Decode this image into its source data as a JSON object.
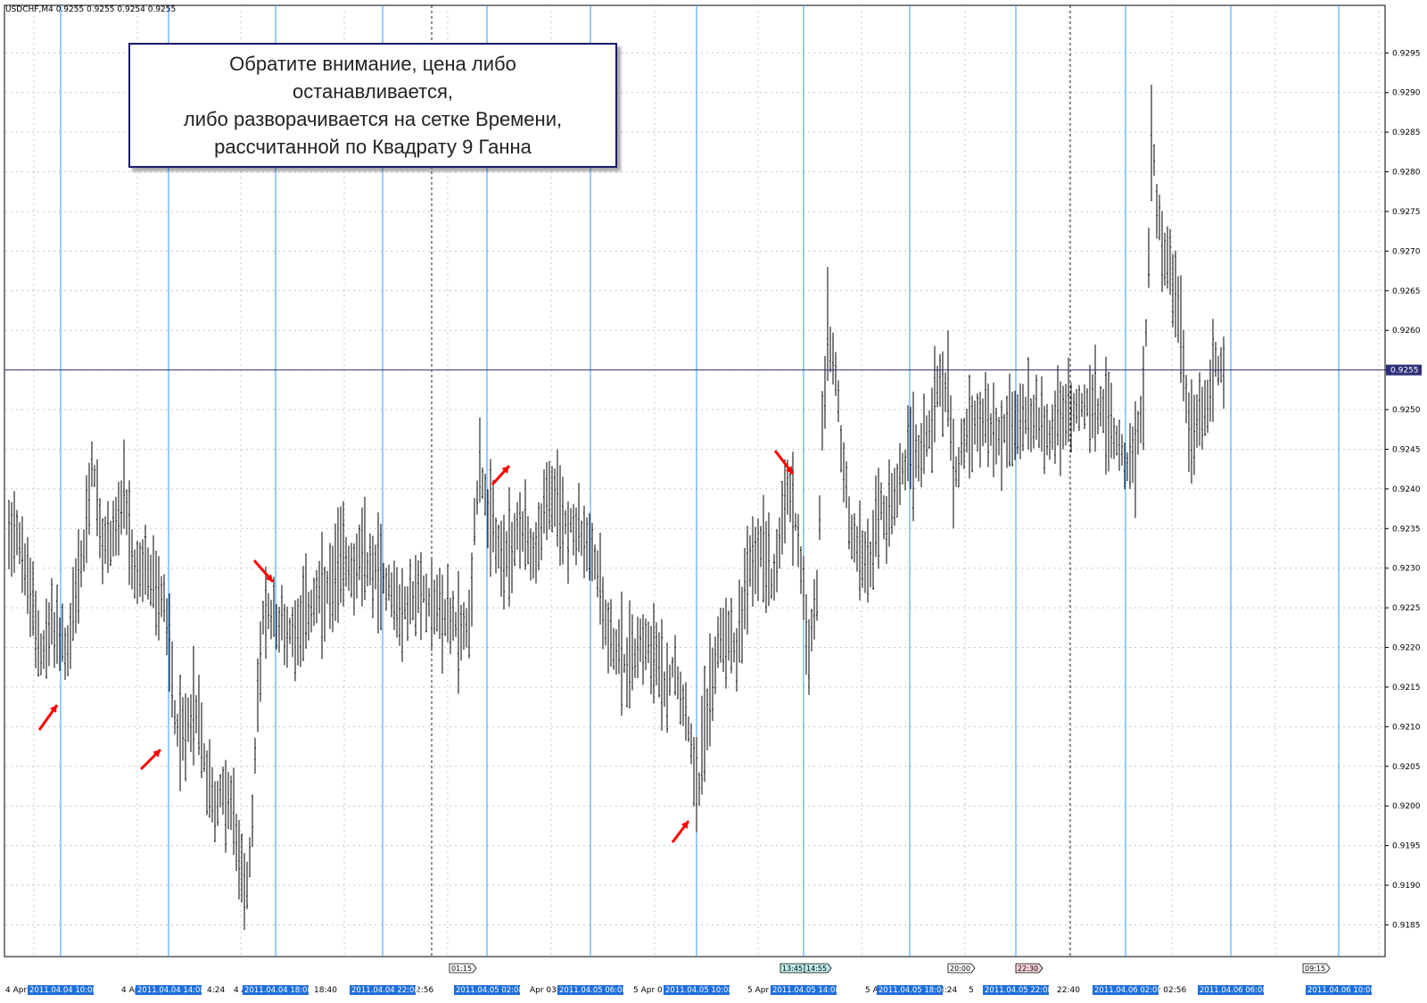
{
  "header": {
    "symbol_label": "USDCHF,M4",
    "ohlc_label": "0.9255 0.9255 0.9254 0.9255"
  },
  "annotation": {
    "text": "Обратите внимание, цена либо останавливается,\nлибо разворачивается на сетке Времени,\nрассчитанной по Квадрату 9 Ганна"
  },
  "colors": {
    "bars": "#000000",
    "time_grid": "#3399ff",
    "price_line": "#33337a",
    "arrows": "#ff0000",
    "label_bg": "#1e6fdc",
    "grid": "#c8c8c8"
  },
  "chart_data": {
    "type": "ohlc_bar",
    "symbol": "USDCHF",
    "timeframe": "M4",
    "ylim": [
      0.9181,
      0.9301
    ],
    "y_ticks": [
      "0.9185",
      "0.9190",
      "0.9195",
      "0.9200",
      "0.9205",
      "0.9210",
      "0.9215",
      "0.9220",
      "0.9225",
      "0.9230",
      "0.9235",
      "0.9240",
      "0.9245",
      "0.9250",
      "0.9255",
      "0.9260",
      "0.9265",
      "0.9270",
      "0.9275",
      "0.9280",
      "0.9285",
      "0.9290",
      "0.9295"
    ],
    "current_price": "0.9255",
    "time_lines": [
      "2011.04.04 10:08",
      "2011.04.04 14:08",
      "2011.04.04 18:08",
      "2011.04.04 22:08",
      "2011.04.05 02:08",
      "2011.04.05 06:08",
      "2011.04.05 10:08",
      "2011.04.05 14:08",
      "2011.04.05 18:04",
      "2011.04.05 22:08",
      "2011.04.06 02:08",
      "2011.04.06 06:08",
      "2011.04.06 10:08"
    ],
    "axis_fragments": [
      "4 Apr",
      "4 Ap",
      "4:24",
      "4 A",
      "18:40",
      "pr 22:56",
      "Apr 03:2",
      "5 Apr 0",
      "5 Apr",
      "5 A",
      "8:24",
      "5",
      "22:40",
      "pr 02:56"
    ],
    "tag_labels": [
      {
        "text": "01:15",
        "color": "#ffffff"
      },
      {
        "text": "13:45",
        "color": "#bfeee8"
      },
      {
        "text": "14:55",
        "color": "#bfeee8"
      },
      {
        "text": "20:00",
        "color": "#ffffff"
      },
      {
        "text": "22:30",
        "color": "#f8d2d8"
      },
      {
        "text": "09:15",
        "color": "#ffffff"
      }
    ],
    "keypoints": [
      [
        0,
        0.9235
      ],
      [
        8,
        0.9236
      ],
      [
        16,
        0.9231
      ],
      [
        26,
        0.9225
      ],
      [
        38,
        0.9219
      ],
      [
        48,
        0.9223
      ],
      [
        58,
        0.9221
      ],
      [
        66,
        0.9219
      ],
      [
        74,
        0.9226
      ],
      [
        84,
        0.9232
      ],
      [
        94,
        0.9244
      ],
      [
        104,
        0.9232
      ],
      [
        118,
        0.9235
      ],
      [
        130,
        0.9238
      ],
      [
        140,
        0.9229
      ],
      [
        152,
        0.923
      ],
      [
        166,
        0.9227
      ],
      [
        174,
        0.9226
      ],
      [
        180,
        0.922
      ],
      [
        186,
        0.9212
      ],
      [
        194,
        0.9208
      ],
      [
        206,
        0.9213
      ],
      [
        214,
        0.921
      ],
      [
        222,
        0.9204
      ],
      [
        232,
        0.92
      ],
      [
        242,
        0.9202
      ],
      [
        252,
        0.9198
      ],
      [
        260,
        0.9192
      ],
      [
        266,
        0.919
      ],
      [
        272,
        0.9194
      ],
      [
        278,
        0.9212
      ],
      [
        284,
        0.9223
      ],
      [
        294,
        0.9224
      ],
      [
        304,
        0.9223
      ],
      [
        316,
        0.9222
      ],
      [
        330,
        0.9224
      ],
      [
        346,
        0.9226
      ],
      [
        362,
        0.9227
      ],
      [
        374,
        0.9232
      ],
      [
        386,
        0.923
      ],
      [
        398,
        0.9231
      ],
      [
        410,
        0.923
      ],
      [
        426,
        0.9228
      ],
      [
        440,
        0.9224
      ],
      [
        452,
        0.9226
      ],
      [
        466,
        0.9227
      ],
      [
        480,
        0.9225
      ],
      [
        492,
        0.9224
      ],
      [
        506,
        0.9222
      ],
      [
        516,
        0.9223
      ],
      [
        522,
        0.9235
      ],
      [
        528,
        0.9244
      ],
      [
        536,
        0.9236
      ],
      [
        546,
        0.9234
      ],
      [
        556,
        0.923
      ],
      [
        568,
        0.9234
      ],
      [
        580,
        0.9235
      ],
      [
        590,
        0.9231
      ],
      [
        600,
        0.9238
      ],
      [
        612,
        0.9238
      ],
      [
        624,
        0.9236
      ],
      [
        638,
        0.9235
      ],
      [
        650,
        0.9232
      ],
      [
        660,
        0.923
      ],
      [
        668,
        0.9224
      ],
      [
        680,
        0.922
      ],
      [
        690,
        0.9218
      ],
      [
        700,
        0.9219
      ],
      [
        712,
        0.9222
      ],
      [
        722,
        0.922
      ],
      [
        734,
        0.9215
      ],
      [
        746,
        0.9218
      ],
      [
        756,
        0.9214
      ],
      [
        762,
        0.921
      ],
      [
        768,
        0.9206
      ],
      [
        774,
        0.9203
      ],
      [
        780,
        0.921
      ],
      [
        788,
        0.9216
      ],
      [
        796,
        0.9221
      ],
      [
        806,
        0.9222
      ],
      [
        816,
        0.922
      ],
      [
        826,
        0.9227
      ],
      [
        836,
        0.9232
      ],
      [
        846,
        0.9233
      ],
      [
        856,
        0.9228
      ],
      [
        866,
        0.9236
      ],
      [
        874,
        0.924
      ],
      [
        882,
        0.9236
      ],
      [
        890,
        0.9228
      ],
      [
        898,
        0.922
      ],
      [
        906,
        0.9226
      ],
      [
        912,
        0.9248
      ],
      [
        918,
        0.9256
      ],
      [
        922,
        0.9258
      ],
      [
        928,
        0.9253
      ],
      [
        934,
        0.9245
      ],
      [
        942,
        0.9236
      ],
      [
        950,
        0.9233
      ],
      [
        958,
        0.923
      ],
      [
        968,
        0.9232
      ],
      [
        978,
        0.9238
      ],
      [
        988,
        0.9236
      ],
      [
        998,
        0.924
      ],
      [
        1008,
        0.9244
      ],
      [
        1020,
        0.9245
      ],
      [
        1030,
        0.9247
      ],
      [
        1040,
        0.9252
      ],
      [
        1048,
        0.9255
      ],
      [
        1054,
        0.9249
      ],
      [
        1060,
        0.9241
      ],
      [
        1066,
        0.9244
      ],
      [
        1074,
        0.9248
      ],
      [
        1086,
        0.9249
      ],
      [
        1098,
        0.9248
      ],
      [
        1110,
        0.9247
      ],
      [
        1124,
        0.9248
      ],
      [
        1140,
        0.9249
      ],
      [
        1156,
        0.9248
      ],
      [
        1170,
        0.9247
      ],
      [
        1184,
        0.9249
      ],
      [
        1196,
        0.925
      ],
      [
        1210,
        0.9251
      ],
      [
        1222,
        0.925
      ],
      [
        1232,
        0.9249
      ],
      [
        1240,
        0.9247
      ],
      [
        1248,
        0.9245
      ],
      [
        1256,
        0.9242
      ],
      [
        1264,
        0.9244
      ],
      [
        1272,
        0.9252
      ],
      [
        1278,
        0.9268
      ],
      [
        1282,
        0.9285
      ],
      [
        1288,
        0.9275
      ],
      [
        1296,
        0.927
      ],
      [
        1304,
        0.9266
      ],
      [
        1312,
        0.9263
      ],
      [
        1318,
        0.9252
      ],
      [
        1324,
        0.9249
      ],
      [
        1332,
        0.9248
      ],
      [
        1342,
        0.9251
      ],
      [
        1350,
        0.9255
      ],
      [
        1358,
        0.9256
      ],
      [
        1366,
        0.9257
      ],
      [
        1370,
        0.9255
      ]
    ]
  }
}
